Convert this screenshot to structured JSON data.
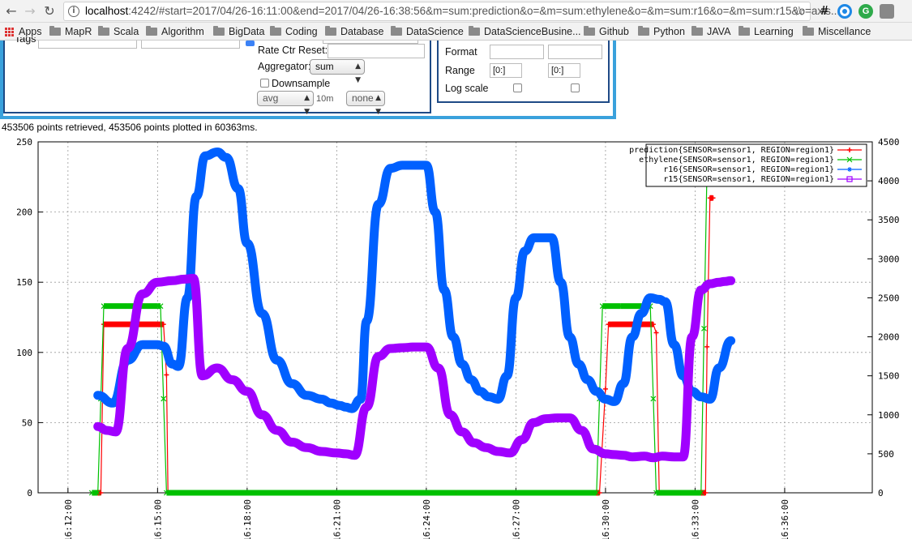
{
  "browser": {
    "back": "←",
    "forward": "→",
    "reload": "↻",
    "info": "i",
    "url_host": "localhost",
    "url_rest": ":4242/#start=2017/04/26-16:11:00&end=2017/04/26-16:38:56&m=sum:prediction&o=&m=sum:ethylene&o=&m=sum:r16&o=&m=sum:r15&o=axis...",
    "star": "☆",
    "ext_hash": "#",
    "ext_g": "G"
  },
  "bookmarks": [
    "Apps",
    "MapR",
    "Scala",
    "Algorithm",
    "BigData",
    "Coding",
    "Database",
    "DataScience",
    "DataScienceBusine...",
    "Github",
    "Python",
    "JAVA",
    "Learning",
    "Miscellance"
  ],
  "query_panel": {
    "tags_label": "Tags",
    "rate_ctr_reset_label": "Rate Ctr Reset:",
    "aggregator_label": "Aggregator:",
    "aggregator_value": "sum",
    "downsample_label": "Downsample",
    "downsample_agg": "avg",
    "downsample_interval": "10m",
    "downsample_fill": "none"
  },
  "axes_panel": {
    "format_label": "Format",
    "range_label": "Range",
    "y1_range": "[0:]",
    "y2_range": "[0:]",
    "log_scale_label": "Log scale"
  },
  "status": "453506 points retrieved, 453506 points plotted in 60363ms.",
  "chart_data": {
    "type": "line",
    "x_range": [
      "16:11:00",
      "16:38:56"
    ],
    "x_ticks": [
      "16:12:00",
      "16:15:00",
      "16:18:00",
      "16:21:00",
      "16:24:00",
      "16:27:00",
      "16:30:00",
      "16:33:00",
      "16:36:00"
    ],
    "y_left": {
      "range": [
        0,
        250
      ],
      "ticks": [
        "0",
        "50",
        "100",
        "150",
        "200",
        "250"
      ]
    },
    "y_right": {
      "range": [
        0,
        4500
      ],
      "ticks": [
        "0",
        "500",
        "1000",
        "1500",
        "2000",
        "2500",
        "3000",
        "3500",
        "4000",
        "4500"
      ]
    },
    "grid": true,
    "legend_position": "top-right",
    "series": [
      {
        "name": "prediction{SENSOR=sensor1, REGION=region1}",
        "color": "#ff0000",
        "axis": "left",
        "marker": "+",
        "x": [
          13.0,
          13.1,
          13.2,
          14.0,
          15.0,
          15.2,
          15.3,
          15.35,
          20.0,
          25.0,
          29.8,
          30.0,
          30.1,
          30.2,
          31.0,
          31.6,
          31.7,
          31.8,
          32.5,
          33.35,
          33.4,
          33.5,
          33.6
        ],
        "y": [
          0,
          0,
          120,
          120,
          120,
          120,
          84,
          0,
          0,
          0,
          0,
          74,
          120,
          120,
          120,
          120,
          114,
          0,
          0,
          0,
          104,
          210,
          210
        ]
      },
      {
        "name": "ethylene{SENSOR=sensor1, REGION=region1}",
        "color": "#00c000",
        "axis": "left",
        "marker": "x",
        "x": [
          12.8,
          13.0,
          13.1,
          13.2,
          14.0,
          14.5,
          15.0,
          15.1,
          15.2,
          15.3,
          20.0,
          25.0,
          29.7,
          29.8,
          29.9,
          30.5,
          31.2,
          31.5,
          31.6,
          31.7,
          31.8,
          32.5,
          33.2,
          33.3,
          33.4,
          33.5
        ],
        "y": [
          0,
          0,
          67,
          133,
          133,
          133,
          133,
          133,
          67,
          0,
          0,
          0,
          0,
          67,
          133,
          133,
          133,
          133,
          67,
          0,
          0,
          0,
          0,
          117,
          233,
          233
        ]
      },
      {
        "name": "r16{SENSOR=sensor1, REGION=region1}",
        "color": "#0060ff",
        "axis": "right",
        "marker": "*",
        "x": [
          13.0,
          13.5,
          14.0,
          14.5,
          15.0,
          15.2,
          15.5,
          15.7,
          16.0,
          16.3,
          16.6,
          17.0,
          17.3,
          17.7,
          18.0,
          18.5,
          19.0,
          19.5,
          20.0,
          20.5,
          20.8,
          21.1,
          21.3,
          21.5,
          21.8,
          22.0,
          22.4,
          22.8,
          23.2,
          23.6,
          24.0,
          24.3,
          24.6,
          24.9,
          25.2,
          25.5,
          25.8,
          26.1,
          26.4,
          26.7,
          27.0,
          27.3,
          27.6,
          27.9,
          28.2,
          28.5,
          28.8,
          29.1,
          29.4,
          29.7,
          30.0,
          30.3,
          30.6,
          30.9,
          31.2,
          31.5,
          31.8,
          32.0,
          32.3,
          32.6,
          32.9,
          33.2,
          33.5,
          33.8,
          34.2
        ],
        "y": [
          1250,
          1150,
          1700,
          1900,
          1900,
          1880,
          1650,
          1620,
          2500,
          3800,
          4320,
          4370,
          4300,
          3900,
          3200,
          2300,
          1700,
          1400,
          1250,
          1200,
          1150,
          1120,
          1100,
          1080,
          1200,
          2200,
          3700,
          4160,
          4200,
          4200,
          4200,
          3600,
          2600,
          2000,
          1650,
          1450,
          1300,
          1230,
          1200,
          1500,
          2500,
          3100,
          3270,
          3270,
          3270,
          2700,
          2000,
          1650,
          1450,
          1300,
          1200,
          1170,
          1400,
          2000,
          2300,
          2500,
          2480,
          2450,
          1900,
          1500,
          1300,
          1230,
          1200,
          1600,
          1950
        ]
      },
      {
        "name": "r15{SENSOR=sensor1, REGION=region1}",
        "color": "#a000ff",
        "axis": "right",
        "marker": "square",
        "x": [
          13.0,
          13.3,
          13.6,
          14.0,
          14.5,
          15.0,
          15.5,
          15.9,
          16.2,
          16.5,
          17.0,
          17.5,
          18.0,
          18.5,
          19.0,
          19.5,
          20.0,
          20.5,
          21.0,
          21.3,
          21.6,
          22.0,
          22.4,
          22.8,
          23.2,
          23.6,
          24.0,
          24.4,
          24.8,
          25.2,
          25.6,
          26.0,
          26.4,
          26.8,
          27.2,
          27.6,
          28.0,
          28.4,
          28.8,
          29.2,
          29.6,
          30.0,
          30.3,
          30.6,
          30.9,
          31.3,
          31.6,
          31.9,
          32.3,
          32.6,
          32.9,
          33.2,
          33.5,
          33.8,
          34.0,
          34.2
        ],
        "y": [
          850,
          800,
          780,
          1850,
          2550,
          2700,
          2720,
          2740,
          2750,
          1500,
          1600,
          1450,
          1300,
          1000,
          800,
          650,
          580,
          530,
          510,
          500,
          480,
          1100,
          1750,
          1850,
          1860,
          1870,
          1870,
          1600,
          1000,
          780,
          640,
          580,
          530,
          510,
          680,
          900,
          950,
          960,
          960,
          800,
          560,
          500,
          490,
          480,
          460,
          470,
          450,
          470,
          460,
          460,
          2000,
          2600,
          2680,
          2700,
          2710,
          2720
        ]
      }
    ]
  }
}
